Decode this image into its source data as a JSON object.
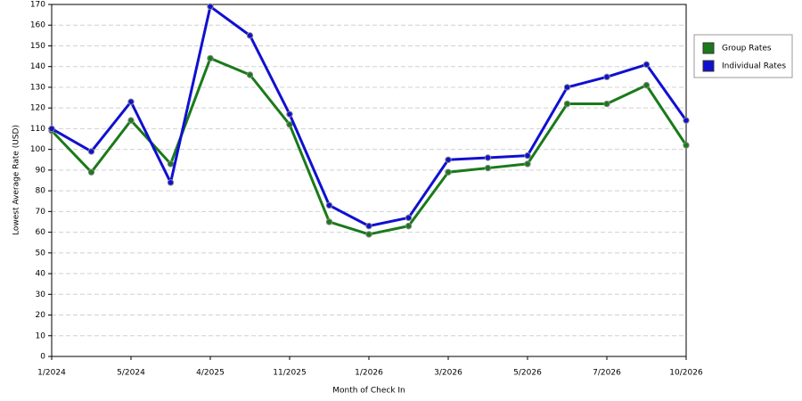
{
  "chart_data": {
    "type": "line",
    "x_label": "Month of Check In",
    "y_label": "Lowest Average Rate (USD)",
    "categories": [
      "1/2024",
      null,
      "5/2024",
      null,
      "4/2025",
      null,
      "11/2025",
      null,
      "1/2026",
      null,
      "3/2026",
      null,
      "5/2026",
      null,
      "7/2026",
      null,
      "10/2026"
    ],
    "series": [
      {
        "name": "Group Rates",
        "color": "#1a7a1a",
        "values": [
          109,
          89,
          114,
          93,
          144,
          136,
          112,
          65,
          59,
          63,
          89,
          91,
          93,
          122,
          122,
          131,
          102
        ]
      },
      {
        "name": "Individual Rates",
        "color": "#1010d0",
        "values": [
          110,
          99,
          123,
          84,
          169,
          155,
          117,
          73,
          63,
          67,
          95,
          96,
          97,
          130,
          135,
          141,
          114
        ]
      }
    ],
    "ylim": [
      0,
      170
    ],
    "yticks": [
      0,
      10,
      20,
      30,
      40,
      50,
      60,
      70,
      80,
      90,
      100,
      110,
      120,
      130,
      140,
      150,
      160,
      170
    ],
    "grid": true,
    "legend": "right"
  }
}
